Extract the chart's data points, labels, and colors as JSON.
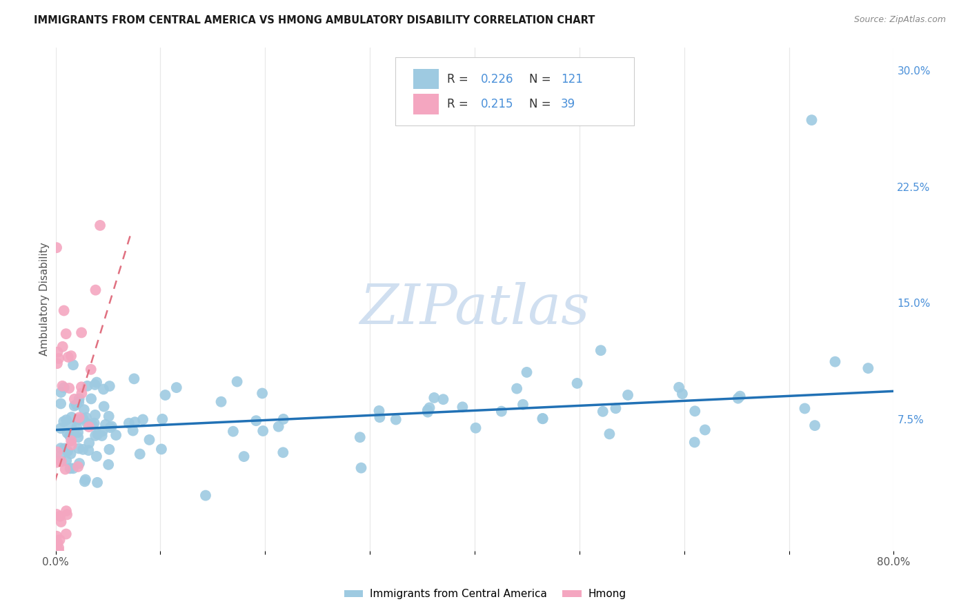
{
  "title": "IMMIGRANTS FROM CENTRAL AMERICA VS HMONG AMBULATORY DISABILITY CORRELATION CHART",
  "source": "Source: ZipAtlas.com",
  "legend_bottom": [
    "Immigrants from Central America",
    "Hmong"
  ],
  "ylabel": "Ambulatory Disability",
  "xlim": [
    0.0,
    0.8
  ],
  "ylim": [
    -0.01,
    0.315
  ],
  "yticks_right": [
    0.075,
    0.15,
    0.225,
    0.3
  ],
  "yticklabels_right": [
    "7.5%",
    "15.0%",
    "22.5%",
    "30.0%"
  ],
  "legend_r_blue": "0.226",
  "legend_n_blue": "121",
  "legend_r_pink": "0.215",
  "legend_n_pink": "39",
  "blue_color": "#9ECAE1",
  "pink_color": "#F4A6C0",
  "trend_blue_color": "#2171B5",
  "trend_pink_color": "#E07080",
  "grid_color": "#E8E8E8",
  "text_color": "#555555",
  "right_axis_color": "#4A90D9",
  "watermark_color": "#D0DFF0"
}
